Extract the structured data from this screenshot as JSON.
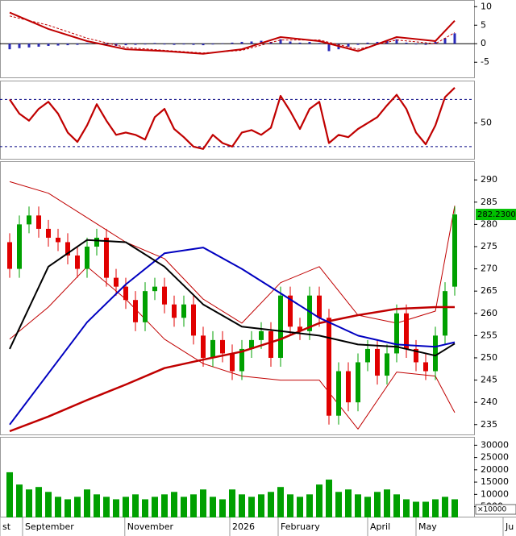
{
  "chart_data": [
    {
      "type": "bar",
      "ylim": [
        -9.3,
        11.8
      ],
      "yticks": [
        10,
        5,
        0,
        -5
      ],
      "xlim": [
        0,
        49
      ],
      "x": [
        1,
        2,
        3,
        4,
        5,
        6,
        7,
        8,
        9,
        10,
        11,
        12,
        13,
        14,
        15,
        16,
        17,
        18,
        19,
        20,
        21,
        22,
        23,
        24,
        25,
        26,
        27,
        28,
        29,
        30,
        31,
        32,
        33,
        34,
        35,
        36,
        37,
        38,
        39,
        40,
        41,
        42,
        43,
        44,
        45,
        46,
        47
      ],
      "series": [
        {
          "type": "bar",
          "color": "#2a2ab8",
          "values": [
            -1.5,
            -1.2,
            -1,
            -0.8,
            -0.6,
            -0.5,
            -0.4,
            -0.3,
            0.2,
            0.3,
            -0.5,
            -0.6,
            -0.4,
            -0.3,
            -0.2,
            0.2,
            -0.2,
            -0.3,
            -0.2,
            -0.3,
            -0.4,
            -0.2,
            0.1,
            0.3,
            0.5,
            0.6,
            0.8,
            0.5,
            1.2,
            0.6,
            0.3,
            0.5,
            0.2,
            -2,
            -1.5,
            -0.8,
            -0.3,
            0.3,
            0.5,
            0.8,
            1.2,
            0.3,
            -0.2,
            -0.3,
            0.5,
            1.5,
            2.8
          ]
        },
        {
          "type": "line",
          "color": "#c00000",
          "width": 2,
          "x": [
            1,
            5,
            9,
            13,
            17,
            21,
            25,
            29,
            33,
            37,
            41,
            45,
            47
          ],
          "values": [
            8.4,
            4,
            0.7,
            -1.5,
            -2,
            -2.7,
            -1.5,
            1.8,
            0.7,
            -2,
            1.8,
            0.7,
            6.2
          ]
        },
        {
          "type": "line",
          "color": "#c00000",
          "width": 1,
          "dashed": true,
          "x": [
            1,
            5,
            9,
            13,
            17,
            21,
            25,
            29,
            33,
            37,
            41,
            45,
            47
          ],
          "values": [
            7.5,
            5,
            1.5,
            -1,
            -1.8,
            -2.5,
            -1.8,
            1,
            1,
            -1.5,
            1,
            0,
            3
          ]
        }
      ]
    },
    {
      "type": "line",
      "ylim": [
        19,
        86
      ],
      "yticks": [
        50
      ],
      "levels": [
        70,
        30
      ],
      "xlim": [
        0,
        49
      ],
      "x": [
        1,
        2,
        3,
        4,
        5,
        6,
        7,
        8,
        9,
        10,
        11,
        12,
        13,
        14,
        15,
        16,
        17,
        18,
        19,
        20,
        21,
        22,
        23,
        24,
        25,
        26,
        27,
        28,
        29,
        30,
        31,
        32,
        33,
        34,
        35,
        36,
        37,
        38,
        39,
        40,
        41,
        42,
        43,
        44,
        45,
        46,
        47
      ],
      "series": [
        {
          "type": "line",
          "color": "#c00000",
          "width": 2.2,
          "values": [
            70,
            58,
            52,
            62,
            68,
            58,
            42,
            34,
            48,
            66,
            52,
            40,
            42,
            40,
            36,
            55,
            62,
            45,
            38,
            30,
            28,
            40,
            33,
            30,
            42,
            44,
            40,
            46,
            73,
            60,
            45,
            62,
            68,
            33,
            40,
            38,
            45,
            50,
            55,
            65,
            74,
            62,
            42,
            32,
            48,
            72,
            80
          ]
        }
      ]
    },
    {
      "type": "candlestick",
      "ylim": [
        232.6,
        294.2
      ],
      "yticks": [
        235,
        240,
        245,
        250,
        255,
        260,
        265,
        270,
        275,
        280,
        285,
        290
      ],
      "xlim": [
        0,
        49
      ],
      "last_price": {
        "value": 282.23,
        "label": "282.2300"
      },
      "x": [
        1,
        2,
        3,
        4,
        5,
        6,
        7,
        8,
        9,
        10,
        11,
        12,
        13,
        14,
        15,
        16,
        17,
        18,
        19,
        20,
        21,
        22,
        23,
        24,
        25,
        26,
        27,
        28,
        29,
        30,
        31,
        32,
        33,
        34,
        35,
        36,
        37,
        38,
        39,
        40,
        41,
        42,
        43,
        44,
        45,
        46,
        47
      ],
      "series": [
        {
          "type": "line",
          "color": "#c00000",
          "width": 1,
          "x": [
            1,
            5,
            9,
            13,
            17,
            21,
            25,
            29,
            33,
            37,
            41,
            45,
            47
          ],
          "values": [
            289.6,
            287,
            281.5,
            276,
            272.3,
            263.2,
            257.8,
            266.9,
            270.5,
            259.6,
            257.8,
            260.5,
            284.2
          ]
        },
        {
          "type": "line",
          "color": "#c00000",
          "width": 1,
          "x": [
            1,
            5,
            9,
            13,
            17,
            21,
            25,
            29,
            33,
            37,
            41,
            45,
            47
          ],
          "values": [
            254.2,
            261.4,
            270.5,
            263.2,
            254.2,
            248.7,
            245.9,
            245,
            245,
            234,
            246.8,
            245.9,
            237.7
          ]
        },
        {
          "type": "candlestick",
          "up_color": "#00a000",
          "down_color": "#e00000",
          "open": [
            276,
            270,
            280,
            282,
            279,
            277,
            276,
            273,
            270,
            275,
            277,
            268,
            266,
            263,
            258,
            265,
            266,
            262,
            259,
            262,
            255,
            250,
            254,
            251,
            247,
            252,
            254,
            256,
            250,
            264,
            257,
            256,
            264,
            259,
            237,
            247,
            240,
            249,
            252,
            246,
            251,
            260,
            252,
            249,
            247,
            255,
            266
          ],
          "high": [
            278,
            282,
            284,
            284,
            281,
            279,
            278,
            275,
            277,
            279,
            279,
            270,
            268,
            265,
            267,
            268,
            268,
            264,
            264,
            264,
            257,
            256,
            256,
            253,
            254,
            256,
            258,
            258,
            266,
            266,
            259,
            266,
            266,
            261,
            249,
            249,
            251,
            254,
            254,
            253,
            262,
            262,
            254,
            251,
            257,
            267,
            284
          ],
          "low": [
            268,
            268,
            278,
            277,
            275,
            274,
            271,
            268,
            268,
            273,
            266,
            264,
            261,
            256,
            256,
            263,
            260,
            257,
            257,
            253,
            248,
            248,
            249,
            245,
            245,
            250,
            252,
            248,
            248,
            255,
            254,
            254,
            257,
            235,
            235,
            238,
            238,
            247,
            244,
            244,
            249,
            250,
            247,
            245,
            245,
            253,
            264
          ],
          "close": [
            270,
            280,
            282,
            279,
            277,
            276,
            273,
            270,
            275,
            277,
            268,
            266,
            263,
            258,
            265,
            266,
            262,
            259,
            262,
            255,
            250,
            254,
            251,
            247,
            252,
            254,
            256,
            250,
            264,
            257,
            256,
            264,
            259,
            237,
            247,
            240,
            249,
            252,
            246,
            251,
            260,
            252,
            249,
            247,
            255,
            265,
            282.23
          ]
        },
        {
          "type": "line",
          "color": "#c00000",
          "width": 2.5,
          "x": [
            1,
            5,
            9,
            13,
            17,
            21,
            25,
            29,
            33,
            37,
            41,
            45,
            47
          ],
          "values": [
            233.5,
            236.8,
            240.5,
            244,
            247.7,
            249.6,
            251.4,
            254.2,
            257.8,
            259.6,
            261,
            261.4,
            261.4
          ]
        },
        {
          "type": "line",
          "color": "#0000c0",
          "width": 2,
          "x": [
            1,
            5,
            9,
            13,
            17,
            21,
            25,
            29,
            33,
            37,
            41,
            45,
            47
          ],
          "values": [
            235,
            246.5,
            258,
            266.5,
            273.5,
            274.8,
            270,
            264.5,
            259,
            255,
            253,
            252.5,
            253.5
          ]
        },
        {
          "type": "line",
          "color": "#000000",
          "width": 2,
          "x": [
            1,
            5,
            9,
            13,
            17,
            21,
            25,
            29,
            33,
            37,
            41,
            45,
            47
          ],
          "values": [
            252,
            270.5,
            276.5,
            276,
            270.5,
            262,
            257,
            256,
            255,
            253,
            252.5,
            250.5,
            253.2
          ]
        }
      ]
    },
    {
      "type": "bar",
      "ylim": [
        600,
        33400
      ],
      "yticks": [
        5000,
        10000,
        15000,
        20000,
        25000,
        30000
      ],
      "xlim": [
        0,
        49
      ],
      "unit_label": "×10000",
      "x": [
        1,
        2,
        3,
        4,
        5,
        6,
        7,
        8,
        9,
        10,
        11,
        12,
        13,
        14,
        15,
        16,
        17,
        18,
        19,
        20,
        21,
        22,
        23,
        24,
        25,
        26,
        27,
        28,
        29,
        30,
        31,
        32,
        33,
        34,
        35,
        36,
        37,
        38,
        39,
        40,
        41,
        42,
        43,
        44,
        45,
        46,
        47
      ],
      "xticks": [
        {
          "value": 0,
          "label": "st"
        },
        {
          "value": 2.33,
          "label": "September"
        },
        {
          "value": 12.9,
          "label": "November"
        },
        {
          "value": 23.75,
          "label": "2026"
        },
        {
          "value": 28.75,
          "label": "February"
        },
        {
          "value": 38,
          "label": "April"
        },
        {
          "value": 43,
          "label": "May"
        },
        {
          "value": 52,
          "label": "Ju"
        }
      ],
      "series": [
        {
          "type": "bar",
          "color": "#00a000",
          "values": [
            19000,
            14000,
            12000,
            13000,
            11000,
            9000,
            8000,
            9000,
            12000,
            10000,
            9000,
            8000,
            9000,
            10000,
            8000,
            9000,
            10000,
            11000,
            9000,
            10000,
            12000,
            9000,
            8000,
            12000,
            10000,
            9000,
            10000,
            11000,
            13000,
            10000,
            9000,
            10000,
            14000,
            16000,
            11000,
            12000,
            10000,
            9000,
            11000,
            12000,
            10000,
            8000,
            7000,
            7000,
            8000,
            9000,
            8000
          ]
        }
      ]
    }
  ]
}
